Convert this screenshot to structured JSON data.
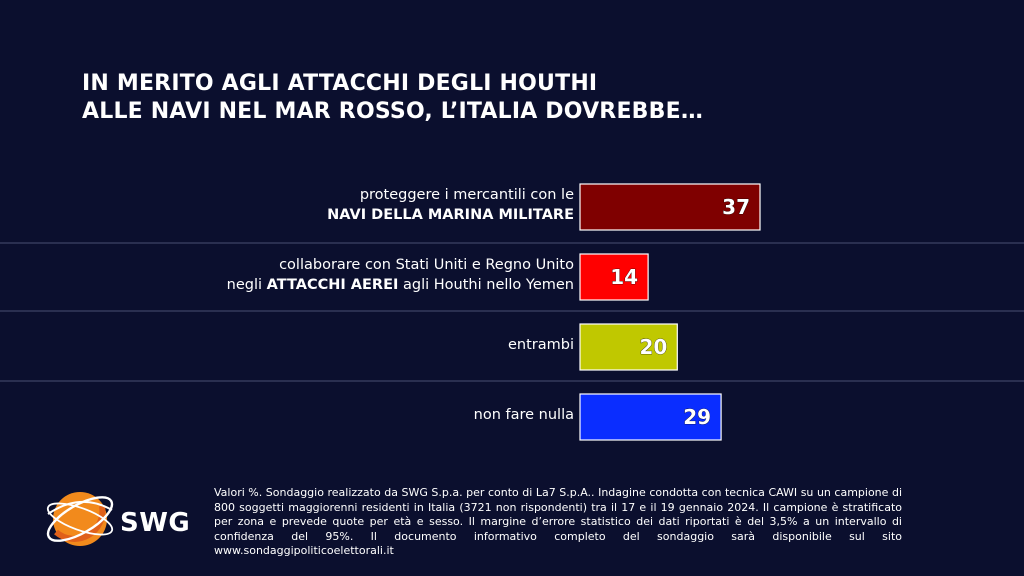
{
  "title": {
    "line1": "IN MERITO AGLI ATTACCHI DEGLI HOUTHI",
    "line2": "ALLE NAVI NEL MAR ROSSO, L’ITALIA DOVREBBE…"
  },
  "chart_data": {
    "type": "bar",
    "orientation": "horizontal",
    "unit": "%",
    "categories": [
      {
        "line1": "proteggere i mercantili con le",
        "line2_bold": "NAVI DELLA MARINA MILITARE",
        "line2_pre": "",
        "line2_post": ""
      },
      {
        "line1": "collaborare con Stati Uniti e Regno Unito",
        "line2_pre": "negli ",
        "line2_bold": "ATTACCHI AEREI",
        "line2_post": " agli Houthi nello Yemen"
      },
      {
        "line1": "entrambi",
        "line2_pre": "",
        "line2_bold": "",
        "line2_post": ""
      },
      {
        "line1": "non fare nulla",
        "line2_pre": "",
        "line2_bold": "",
        "line2_post": ""
      }
    ],
    "values": [
      37,
      14,
      20,
      29
    ],
    "colors": [
      "#7f0000",
      "#ff0000",
      "#c0c800",
      "#0a2dff"
    ],
    "grid": false
  },
  "footer": {
    "text": "Valori %. Sondaggio realizzato da SWG S.p.a. per conto di La7 S.p.A.. Indagine condotta con tecnica CAWI su un campione di 800 soggetti maggiorenni residenti in Italia (3721 non rispondenti) tra il 17 e il 19 gennaio 2024. Il campione è stratificato per zona e prevede quote per età e sesso. Il margine d’errore statistico dei dati riportati è del 3,5% a un intervallo di confidenza del 95%. Il documento informativo completo del sondaggio sarà disponibile sul sito www.sondaggipoliticoelettorali.it"
  },
  "logo": {
    "text": "SWG",
    "colors": {
      "orange": "#f28a1c",
      "dark_orange": "#e0601a"
    }
  }
}
